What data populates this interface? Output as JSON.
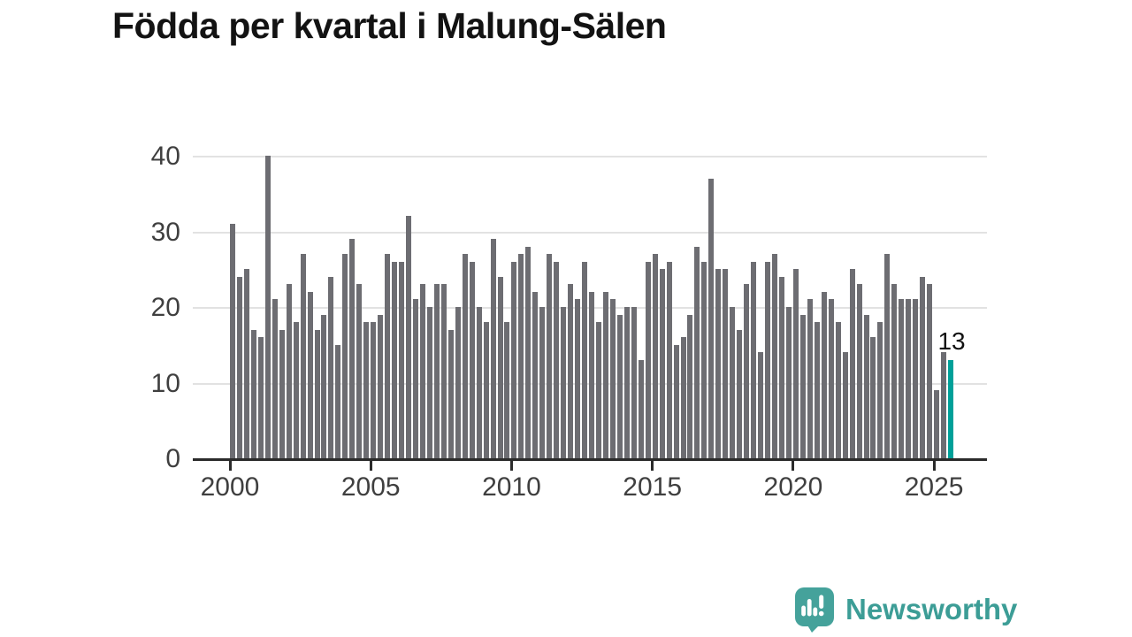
{
  "title": "Födda per kvartal i Malung-Sälen",
  "annotation": {
    "label": "13"
  },
  "watermark": {
    "brand": "Newsworthy",
    "icon": "bar-chart-speech-bubble-icon"
  },
  "colors": {
    "bar": "#6d6d72",
    "highlight": "#00a099",
    "grid": "#e2e2e2",
    "axis": "#2b2b2b",
    "title": "#131313",
    "tick_label": "#3f3f3f",
    "brand": "#3c9d96"
  },
  "chart_data": {
    "type": "bar",
    "title": "Födda per kvartal i Malung-Sälen",
    "xlabel": "",
    "ylabel": "",
    "ylim": [
      0,
      40
    ],
    "yticks": [
      0,
      10,
      20,
      30,
      40
    ],
    "xticks": [
      "2000",
      "2005",
      "2010",
      "2015",
      "2020",
      "2025"
    ],
    "grid": true,
    "legend_position": "none",
    "highlight_index": 102,
    "highlight_label": "13",
    "x": [
      "2000 Q1",
      "2000 Q2",
      "2000 Q3",
      "2000 Q4",
      "2001 Q1",
      "2001 Q2",
      "2001 Q3",
      "2001 Q4",
      "2002 Q1",
      "2002 Q2",
      "2002 Q3",
      "2002 Q4",
      "2003 Q1",
      "2003 Q2",
      "2003 Q3",
      "2003 Q4",
      "2004 Q1",
      "2004 Q2",
      "2004 Q3",
      "2004 Q4",
      "2005 Q1",
      "2005 Q2",
      "2005 Q3",
      "2005 Q4",
      "2006 Q1",
      "2006 Q2",
      "2006 Q3",
      "2006 Q4",
      "2007 Q1",
      "2007 Q2",
      "2007 Q3",
      "2007 Q4",
      "2008 Q1",
      "2008 Q2",
      "2008 Q3",
      "2008 Q4",
      "2009 Q1",
      "2009 Q2",
      "2009 Q3",
      "2009 Q4",
      "2010 Q1",
      "2010 Q2",
      "2010 Q3",
      "2010 Q4",
      "2011 Q1",
      "2011 Q2",
      "2011 Q3",
      "2011 Q4",
      "2012 Q1",
      "2012 Q2",
      "2012 Q3",
      "2012 Q4",
      "2013 Q1",
      "2013 Q2",
      "2013 Q3",
      "2013 Q4",
      "2014 Q1",
      "2014 Q2",
      "2014 Q3",
      "2014 Q4",
      "2015 Q1",
      "2015 Q2",
      "2015 Q3",
      "2015 Q4",
      "2016 Q1",
      "2016 Q2",
      "2016 Q3",
      "2016 Q4",
      "2017 Q1",
      "2017 Q2",
      "2017 Q3",
      "2017 Q4",
      "2018 Q1",
      "2018 Q2",
      "2018 Q3",
      "2018 Q4",
      "2019 Q1",
      "2019 Q2",
      "2019 Q3",
      "2019 Q4",
      "2020 Q1",
      "2020 Q2",
      "2020 Q3",
      "2020 Q4",
      "2021 Q1",
      "2021 Q2",
      "2021 Q3",
      "2021 Q4",
      "2022 Q1",
      "2022 Q2",
      "2022 Q3",
      "2022 Q4",
      "2023 Q1",
      "2023 Q2",
      "2023 Q3",
      "2023 Q4",
      "2024 Q1",
      "2024 Q2",
      "2024 Q3",
      "2024 Q4",
      "2025 Q1",
      "2025 Q2",
      "2025 Q3"
    ],
    "values": [
      31,
      24,
      25,
      17,
      16,
      40,
      21,
      17,
      23,
      18,
      27,
      22,
      17,
      19,
      24,
      15,
      27,
      29,
      23,
      18,
      18,
      19,
      27,
      26,
      26,
      32,
      21,
      23,
      20,
      23,
      23,
      17,
      20,
      27,
      26,
      20,
      18,
      29,
      24,
      18,
      26,
      27,
      28,
      22,
      20,
      27,
      26,
      20,
      23,
      21,
      26,
      22,
      18,
      22,
      21,
      19,
      20,
      20,
      13,
      26,
      27,
      25,
      26,
      15,
      16,
      19,
      28,
      26,
      37,
      25,
      25,
      20,
      17,
      23,
      26,
      14,
      26,
      27,
      24,
      20,
      25,
      19,
      21,
      18,
      22,
      21,
      18,
      14,
      25,
      23,
      19,
      16,
      18,
      27,
      23,
      21,
      21,
      21,
      24,
      23,
      9,
      14,
      13
    ]
  }
}
